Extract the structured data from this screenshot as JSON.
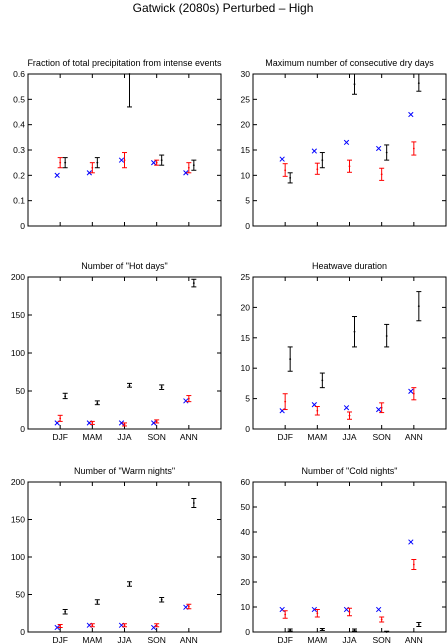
{
  "suptitle": "Gatwick (2080s) Perturbed – High",
  "chart_data": [
    {
      "type": "scatter",
      "title": "Fraction of total precipitation from intense events",
      "categories": [
        "DJF",
        "MAM",
        "JJA",
        "SON",
        "ANN"
      ],
      "show_xticklabels": false,
      "ylim": [
        0,
        0.6
      ],
      "yticks": [
        "0",
        "0.1",
        "0.2",
        "0.3",
        "0.4",
        "0.5",
        "0.6"
      ],
      "series": [
        {
          "marker": "x",
          "color": "#0000ff",
          "values": [
            0.2,
            0.21,
            0.26,
            0.25,
            0.21
          ]
        },
        {
          "marker": "errorbar",
          "color": "#ff0000",
          "values": [
            0.25,
            0.23,
            0.26,
            0.25,
            0.23
          ],
          "low": [
            0.23,
            0.21,
            0.23,
            0.24,
            0.21
          ],
          "high": [
            0.27,
            0.25,
            0.29,
            0.26,
            0.25
          ]
        },
        {
          "marker": "errorbar",
          "color": "#000000",
          "values": [
            0.25,
            0.25,
            0.6,
            0.26,
            0.24
          ],
          "low": [
            0.23,
            0.23,
            0.47,
            0.24,
            0.22
          ],
          "high": [
            0.27,
            0.27,
            0.6,
            0.28,
            0.26
          ]
        }
      ]
    },
    {
      "type": "scatter",
      "title": "Maximum number of consecutive dry days",
      "categories": [
        "DJF",
        "MAM",
        "JJA",
        "SON",
        "ANN"
      ],
      "show_xticklabels": false,
      "ylim": [
        0,
        30
      ],
      "yticks": [
        "0",
        "5",
        "10",
        "15",
        "20",
        "25",
        "30"
      ],
      "series": [
        {
          "marker": "x",
          "color": "#0000ff",
          "values": [
            13.2,
            14.8,
            16.5,
            15.3,
            22
          ]
        },
        {
          "marker": "errorbar",
          "color": "#ff0000",
          "values": [
            11,
            11.2,
            11.8,
            10.2,
            15.3
          ],
          "low": [
            9.8,
            10.2,
            10.6,
            9,
            14
          ],
          "high": [
            12.3,
            12.4,
            13,
            11.4,
            16.6
          ]
        },
        {
          "marker": "errorbar",
          "color": "#000000",
          "values": [
            9.5,
            13,
            28,
            14.5,
            28.2
          ],
          "low": [
            8.5,
            11.5,
            26,
            13,
            26.6
          ],
          "high": [
            10.5,
            14.5,
            30,
            16,
            30
          ]
        }
      ]
    },
    {
      "type": "scatter",
      "title": "Number of \"Hot days\"",
      "categories": [
        "DJF",
        "MAM",
        "JJA",
        "SON",
        "ANN"
      ],
      "show_xticklabels": true,
      "ylim": [
        0,
        200
      ],
      "yticks": [
        "0",
        "50",
        "100",
        "150",
        "200"
      ],
      "series": [
        {
          "marker": "x",
          "color": "#0000ff",
          "values": [
            8,
            8,
            8,
            8,
            37
          ]
        },
        {
          "marker": "errorbar",
          "color": "#ff0000",
          "values": [
            14,
            8,
            6,
            10,
            40
          ],
          "low": [
            10,
            6,
            4,
            8,
            36
          ],
          "high": [
            18,
            10,
            8,
            12,
            44
          ]
        },
        {
          "marker": "errorbar",
          "color": "#000000",
          "values": [
            43,
            34,
            57,
            55,
            192
          ],
          "low": [
            40,
            32,
            55,
            52,
            187
          ],
          "high": [
            47,
            37,
            60,
            58,
            197
          ]
        }
      ]
    },
    {
      "type": "scatter",
      "title": "Heatwave duration",
      "categories": [
        "DJF",
        "MAM",
        "JJA",
        "SON",
        "ANN"
      ],
      "show_xticklabels": true,
      "ylim": [
        0,
        25
      ],
      "yticks": [
        "0",
        "5",
        "10",
        "15",
        "20",
        "25"
      ],
      "series": [
        {
          "marker": "x",
          "color": "#0000ff",
          "values": [
            3,
            4,
            3.5,
            3.2,
            6.2
          ]
        },
        {
          "marker": "errorbar",
          "color": "#ff0000",
          "values": [
            4.5,
            3,
            2.2,
            3.5,
            5.8
          ],
          "low": [
            3.2,
            2.3,
            1.6,
            2.7,
            4.8
          ],
          "high": [
            5.8,
            3.7,
            2.8,
            4.3,
            6.8
          ]
        },
        {
          "marker": "errorbar",
          "color": "#000000",
          "values": [
            11.5,
            8,
            16,
            15.3,
            20.2
          ],
          "low": [
            9.5,
            6.8,
            13.5,
            13.5,
            17.8
          ],
          "high": [
            13.5,
            9.2,
            18.5,
            17.2,
            22.6
          ]
        }
      ]
    },
    {
      "type": "scatter",
      "title": "Number of \"Warm nights\"",
      "categories": [
        "DJF",
        "MAM",
        "JJA",
        "SON",
        "ANN"
      ],
      "show_xticklabels": true,
      "ylim": [
        0,
        200
      ],
      "yticks": [
        "0",
        "50",
        "100",
        "150",
        "200"
      ],
      "series": [
        {
          "marker": "x",
          "color": "#0000ff",
          "values": [
            6,
            9,
            9,
            6,
            33
          ]
        },
        {
          "marker": "errorbar",
          "color": "#ff0000",
          "values": [
            8,
            9,
            9,
            9,
            34
          ],
          "low": [
            6,
            7,
            7,
            7,
            31
          ],
          "high": [
            10,
            11,
            11,
            11,
            37
          ]
        },
        {
          "marker": "errorbar",
          "color": "#000000",
          "values": [
            27,
            40,
            64,
            43,
            172
          ],
          "low": [
            24,
            37,
            61,
            40,
            166
          ],
          "high": [
            30,
            43,
            67,
            46,
            178
          ]
        }
      ]
    },
    {
      "type": "scatter",
      "title": "Number of \"Cold nights\"",
      "categories": [
        "DJF",
        "MAM",
        "JJA",
        "SON",
        "ANN"
      ],
      "show_xticklabels": true,
      "ylim": [
        0,
        60
      ],
      "yticks": [
        "0",
        "10",
        "20",
        "30",
        "40",
        "50",
        "60"
      ],
      "series": [
        {
          "marker": "x",
          "color": "#0000ff",
          "values": [
            9,
            9,
            9,
            9,
            36
          ]
        },
        {
          "marker": "errorbar",
          "color": "#ff0000",
          "values": [
            7,
            7.5,
            8,
            5,
            27
          ],
          "low": [
            5.5,
            6,
            6.5,
            4,
            25
          ],
          "high": [
            8.5,
            9,
            9.5,
            6,
            29
          ]
        },
        {
          "marker": "errorbar",
          "color": "#000000",
          "values": [
            0.8,
            1,
            0.8,
            0,
            3
          ],
          "low": [
            0.4,
            0.6,
            0.4,
            0,
            2.2
          ],
          "high": [
            1.2,
            1.4,
            1.2,
            0.3,
            3.8
          ]
        }
      ]
    }
  ]
}
